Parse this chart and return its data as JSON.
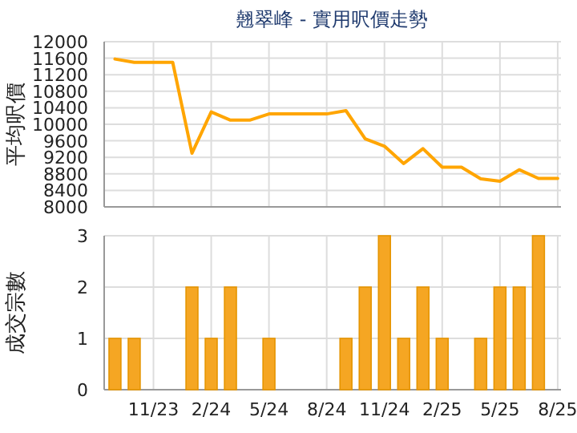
{
  "chart_data": [
    {
      "type": "line",
      "title": "翹翠峰 - 實用呎價走勢",
      "ylabel": "平均呎價",
      "categories": [
        null,
        null,
        null,
        null,
        null,
        null,
        null,
        null,
        null,
        null,
        null,
        null,
        null,
        null,
        null,
        null,
        null,
        null,
        null,
        null,
        null,
        null,
        null,
        null
      ],
      "series": [
        {
          "color": "#ffa500",
          "values": [
            11580,
            11500,
            11500,
            11500,
            9300,
            10300,
            10100,
            10100,
            10250,
            10250,
            10250,
            10250,
            10330,
            9650,
            9470,
            9050,
            9410,
            8960,
            8960,
            8680,
            8620,
            8900,
            8690,
            8690
          ]
        }
      ],
      "ylim": [
        8000,
        12000
      ],
      "yticks": [
        8000,
        8400,
        8800,
        9200,
        9600,
        10000,
        10400,
        10800,
        11200,
        11600,
        12000
      ],
      "grid": true,
      "tick_labels": "y"
    },
    {
      "type": "bar",
      "ylabel": "成交宗數",
      "categories": [
        null,
        null,
        "11/23",
        null,
        null,
        "2/24",
        null,
        null,
        "5/24",
        null,
        null,
        "8/24",
        null,
        null,
        "11/24",
        null,
        null,
        "2/25",
        null,
        null,
        "5/25",
        null,
        null,
        "8/25"
      ],
      "values": [
        1,
        1,
        0,
        0,
        2,
        1,
        2,
        0,
        1,
        0,
        0,
        0,
        1,
        2,
        3,
        1,
        2,
        1,
        0,
        1,
        2,
        2,
        3,
        0
      ],
      "color": "#f5a623",
      "ylim": [
        0,
        3
      ],
      "yticks": [
        0,
        1,
        2,
        3
      ],
      "grid": true
    }
  ]
}
